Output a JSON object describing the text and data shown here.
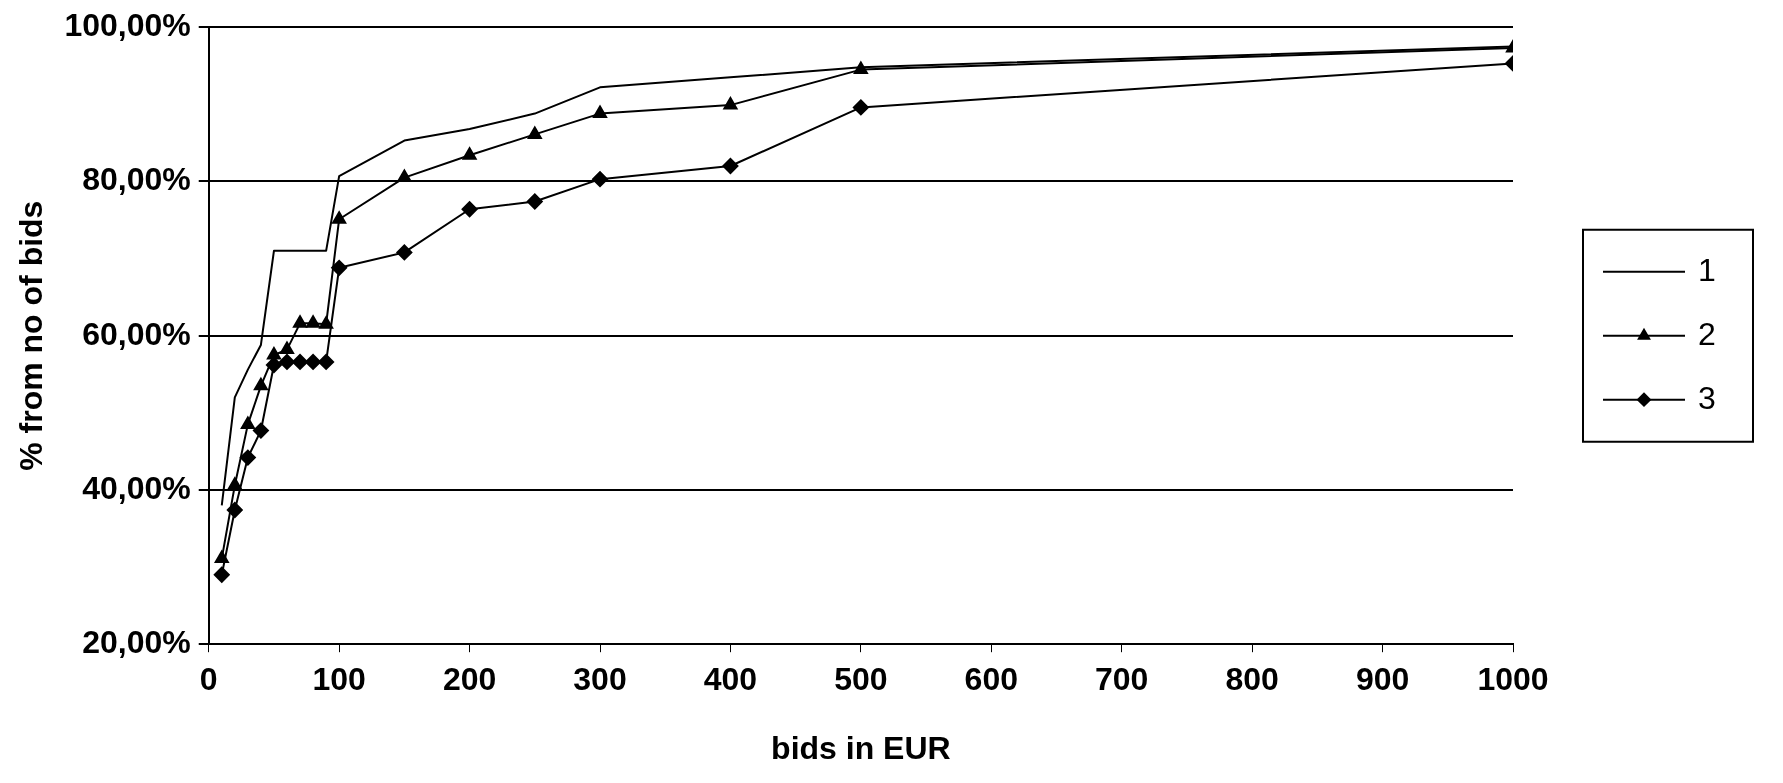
{
  "chart_data": {
    "type": "line",
    "xlabel": "bids in EUR",
    "ylabel": "% from no of bids",
    "x": [
      10,
      20,
      30,
      40,
      50,
      60,
      70,
      80,
      90,
      100,
      150,
      200,
      250,
      300,
      400,
      500,
      1000
    ],
    "series": [
      {
        "name": "1",
        "color": "#000000",
        "marker": "none",
        "values": [
          38,
          52,
          55.6,
          58.8,
          71,
          71,
          71,
          71,
          71,
          80.7,
          85.3,
          86.8,
          88.8,
          92.2,
          93.5,
          94.8,
          97.5
        ]
      },
      {
        "name": "2",
        "color": "#000000",
        "marker": "triangle",
        "values": [
          31.1,
          40.6,
          48.5,
          53.5,
          57.5,
          58.2,
          61.6,
          61.6,
          61.5,
          75.1,
          80.5,
          83.4,
          86.1,
          88.8,
          89.9,
          94.5,
          97.3
        ]
      },
      {
        "name": "3",
        "color": "#000000",
        "marker": "diamond",
        "values": [
          29,
          37.4,
          44.2,
          47.7,
          56.2,
          56.6,
          56.6,
          56.6,
          56.6,
          68.8,
          70.8,
          76.4,
          77.4,
          80.3,
          82,
          89.6,
          95.3
        ]
      }
    ],
    "xlim": [
      0,
      1000
    ],
    "xticks": [
      0,
      100,
      200,
      300,
      400,
      500,
      600,
      700,
      800,
      900,
      1000
    ],
    "ylim": [
      20,
      100
    ],
    "yticks": [
      {
        "value": 20,
        "label": "20,00%"
      },
      {
        "value": 40,
        "label": "40,00%"
      },
      {
        "value": 60,
        "label": "60,00%"
      },
      {
        "value": 80,
        "label": "80,00%"
      },
      {
        "value": 100,
        "label": "100,00%"
      }
    ],
    "grid": "y",
    "legend": "right",
    "line_style": "solid"
  }
}
